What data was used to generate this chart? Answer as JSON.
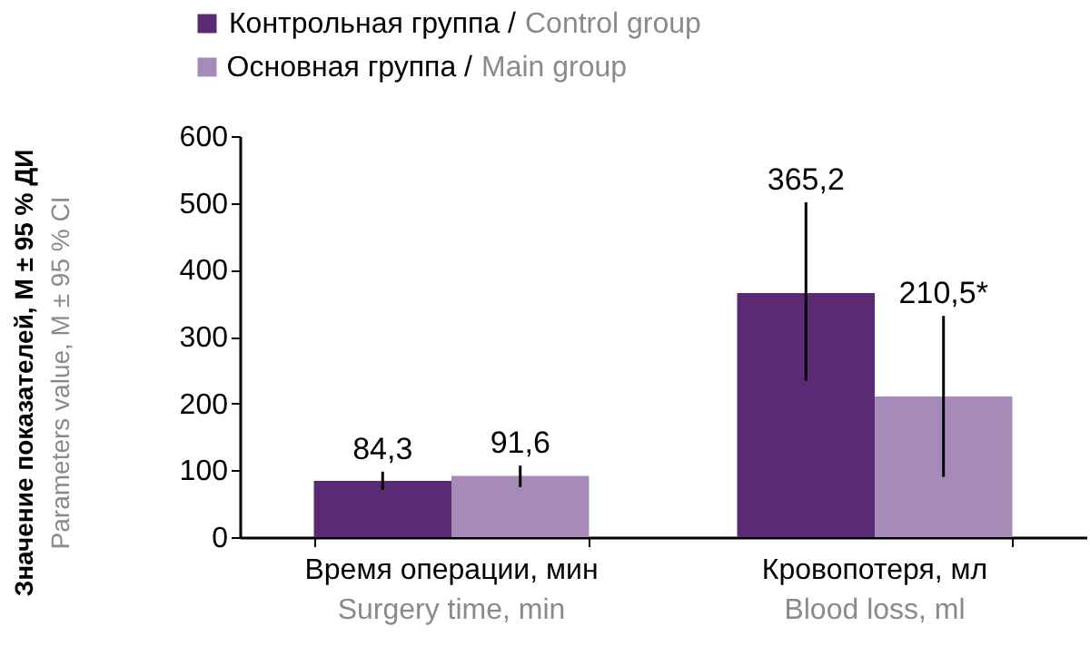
{
  "chart_data": {
    "type": "bar",
    "ylabel": "Значение показателей, М ± 95 % ДИ\nParameters value, M ± 95 % CI",
    "categories": [
      "Время операции, мин\nSurgery time, min",
      "Кровопотеря, мл\nBlood loss, ml"
    ],
    "series": [
      {
        "name": "Контрольная группа / Control group",
        "color": "#5a2a74",
        "values": [
          84.3,
          365.2
        ],
        "errors": [
          [
            71,
            98
          ],
          [
            234,
            501
          ]
        ],
        "value_labels": [
          "84,3",
          "365,2"
        ]
      },
      {
        "name": "Основная группа / Main group",
        "color": "#a68ab8",
        "values": [
          91.6,
          210.5
        ],
        "errors": [
          [
            75,
            107
          ],
          [
            90,
            331
          ]
        ],
        "value_labels": [
          "91,6",
          "210,5*"
        ]
      }
    ],
    "ylim": [
      0,
      600
    ],
    "yticks": [
      0,
      100,
      200,
      300,
      400,
      500,
      600
    ],
    "grid": false,
    "legend": "top"
  }
}
